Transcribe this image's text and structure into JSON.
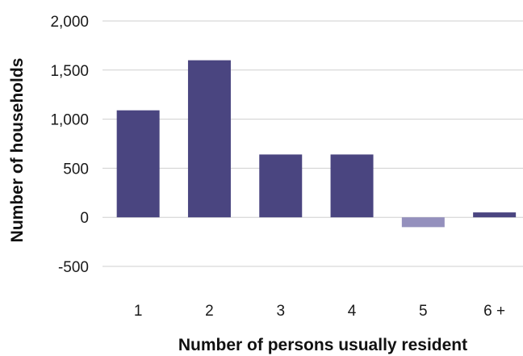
{
  "chart_data": {
    "type": "bar",
    "title": "",
    "xlabel": "Number of persons usually resident",
    "ylabel": "Number of households",
    "categories": [
      "1",
      "2",
      "3",
      "4",
      "5",
      "6 +"
    ],
    "values": [
      1090,
      1600,
      640,
      640,
      -100,
      50
    ],
    "ylim": [
      -500,
      2000
    ],
    "yticks": [
      2000,
      1500,
      1000,
      500,
      0,
      -500
    ],
    "ytick_labels": [
      "2,000",
      "1,500",
      "1,000",
      "500",
      "0",
      "-500"
    ],
    "grid": true,
    "legend": "none",
    "colors": {
      "positive": "#4a4580",
      "negative": "#9490bd",
      "grid": "#cfcfcf"
    }
  }
}
